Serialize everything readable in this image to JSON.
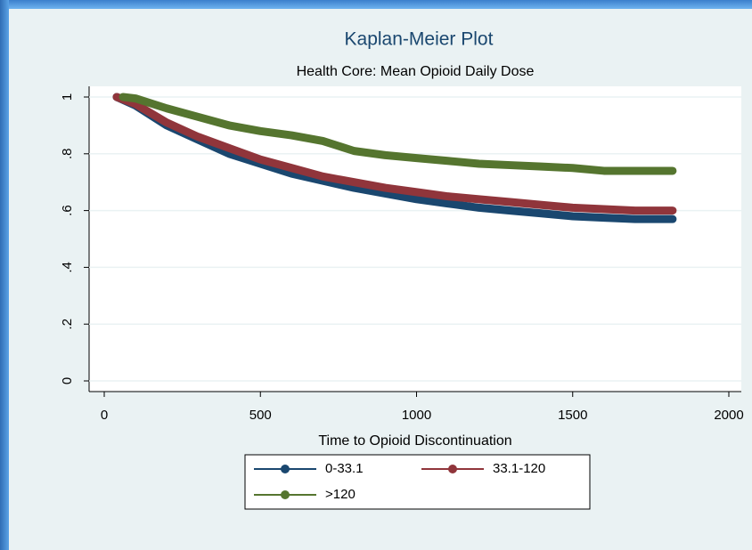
{
  "chart_data": {
    "type": "line",
    "title": "Kaplan-Meier Plot",
    "subtitle": "Health Core: Mean Opioid Daily Dose",
    "x_label": "Time to Opioid Discontinuation",
    "xlim": [
      0,
      2000
    ],
    "xticks": [
      0,
      500,
      1000,
      1500,
      2000
    ],
    "ylim": [
      0,
      1
    ],
    "yticks": [
      0,
      {
        "value": 0.2,
        "label": ".2"
      },
      {
        "value": 0.4,
        "label": ".4"
      },
      {
        "value": 0.6,
        "label": ".6"
      },
      {
        "value": 0.8,
        "label": ".8"
      },
      1
    ],
    "grid": true,
    "legend": "bottom",
    "series": [
      {
        "name": "0-33.1",
        "color": "#1a476f",
        "x": [
          40,
          100,
          200,
          300,
          400,
          500,
          600,
          700,
          800,
          900,
          1000,
          1100,
          1200,
          1300,
          1400,
          1500,
          1600,
          1700,
          1820
        ],
        "values": [
          1,
          0.97,
          0.9,
          0.85,
          0.8,
          0.765,
          0.73,
          0.705,
          0.68,
          0.66,
          0.64,
          0.625,
          0.61,
          0.6,
          0.59,
          0.58,
          0.575,
          0.57,
          0.57
        ]
      },
      {
        "name": "33.1-120",
        "color": "#90353b",
        "x": [
          40,
          100,
          200,
          300,
          400,
          500,
          600,
          700,
          800,
          900,
          1000,
          1100,
          1200,
          1300,
          1400,
          1500,
          1600,
          1700,
          1820
        ],
        "values": [
          1,
          0.975,
          0.91,
          0.86,
          0.82,
          0.78,
          0.75,
          0.72,
          0.7,
          0.68,
          0.665,
          0.65,
          0.64,
          0.63,
          0.62,
          0.61,
          0.605,
          0.6,
          0.6
        ]
      },
      {
        "name": ">120",
        "color": "#55752f",
        "x": [
          60,
          100,
          200,
          300,
          400,
          500,
          600,
          700,
          800,
          900,
          1000,
          1100,
          1200,
          1300,
          1400,
          1500,
          1600,
          1700,
          1820
        ],
        "values": [
          1,
          0.995,
          0.96,
          0.93,
          0.9,
          0.88,
          0.865,
          0.845,
          0.81,
          0.795,
          0.785,
          0.775,
          0.765,
          0.76,
          0.755,
          0.75,
          0.74,
          0.74,
          0.74
        ]
      }
    ]
  }
}
